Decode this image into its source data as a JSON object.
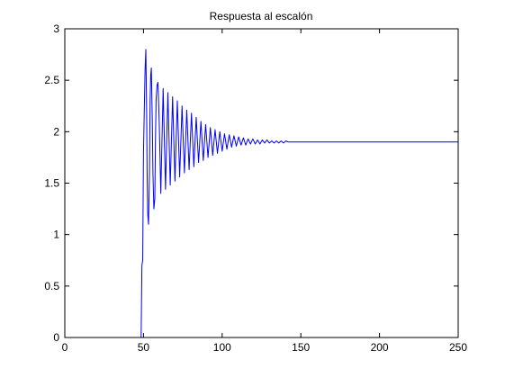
{
  "chart_data": {
    "type": "line",
    "title": "Respuesta al escalón",
    "xlabel": "",
    "ylabel": "",
    "xlim": [
      0,
      250
    ],
    "ylim": [
      0,
      3
    ],
    "x_ticks": [
      0,
      50,
      100,
      150,
      200,
      250
    ],
    "y_ticks": [
      0,
      0.5,
      1,
      1.5,
      2,
      2.5,
      3
    ],
    "grid": false,
    "legend": "none",
    "series": [
      {
        "color": "#0000ff",
        "x": [
          0,
          48.5,
          49.0,
          49.5,
          50.0,
          50.5,
          51.0,
          51.5,
          52.0,
          52.3,
          52.7,
          53.2,
          53.8,
          54.2,
          54.6,
          55.0,
          55.6,
          56.0,
          56.6,
          57.2,
          57.6,
          58.0,
          58.6,
          59.2,
          60.0,
          61.0,
          62.5,
          64.0,
          65.5,
          67.0,
          68.5,
          70.0,
          71.5,
          73.0,
          74.5,
          76.0,
          77.5,
          79.0,
          80.5,
          82.0,
          83.5,
          85.0,
          86.5,
          88.0,
          89.5,
          91.0,
          92.5,
          94.0,
          95.5,
          97.0,
          98.5,
          100.0,
          101.5,
          103.0,
          104.5,
          106.0,
          107.5,
          109.0,
          110.5,
          112.0,
          113.5,
          115.0,
          116.5,
          118.0,
          119.5,
          121.0,
          122.5,
          124.0,
          125.5,
          127.0,
          128.5,
          130.0,
          131.5,
          133.0,
          134.5,
          136.0,
          137.5,
          139.0,
          140.5,
          142.0,
          150.0,
          175.0,
          200.0,
          225.0,
          250.0
        ],
        "y": [
          0,
          0,
          0.7,
          0.75,
          1.8,
          2.2,
          2.6,
          2.8,
          2.2,
          1.6,
          1.2,
          1.1,
          1.6,
          2.3,
          2.55,
          2.62,
          2.1,
          1.6,
          1.25,
          1.35,
          1.9,
          2.3,
          2.45,
          2.48,
          2.1,
          1.4,
          2.42,
          1.44,
          2.38,
          1.48,
          2.34,
          1.52,
          2.3,
          1.56,
          2.25,
          1.6,
          2.21,
          1.63,
          2.18,
          1.66,
          2.14,
          1.7,
          2.1,
          1.72,
          2.07,
          1.75,
          2.04,
          1.77,
          2.02,
          1.79,
          2.0,
          1.81,
          1.98,
          1.83,
          1.97,
          1.85,
          1.96,
          1.86,
          1.95,
          1.87,
          1.94,
          1.87,
          1.93,
          1.88,
          1.93,
          1.88,
          1.92,
          1.88,
          1.92,
          1.89,
          1.92,
          1.89,
          1.91,
          1.89,
          1.91,
          1.89,
          1.91,
          1.89,
          1.91,
          1.9,
          1.9,
          1.9,
          1.9,
          1.9,
          1.9
        ]
      }
    ]
  }
}
